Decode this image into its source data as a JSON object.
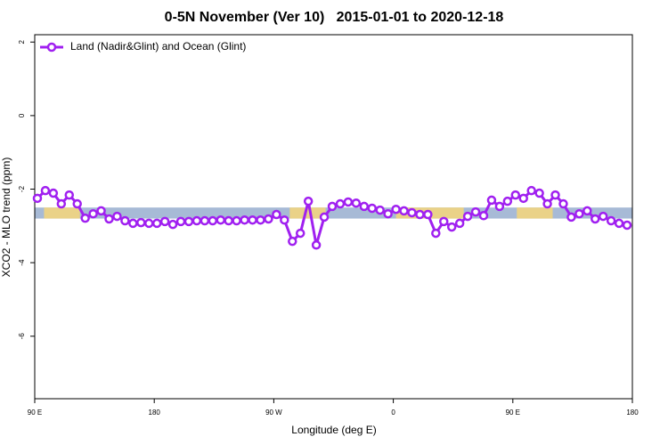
{
  "chart_data": {
    "type": "line",
    "title": "0-5N November (Ver 10)   2015-01-01 to 2020-12-18",
    "xlabel": "Longitude (deg E)",
    "ylabel": "XCO2 - MLO trend (ppm)",
    "xlim": [
      90,
      540
    ],
    "ylim": [
      -7.7,
      2.2
    ],
    "xticks": [
      {
        "value": 90,
        "label": "90 E"
      },
      180,
      {
        "value": 270,
        "label": "90 W"
      },
      {
        "value": 360,
        "label": "0"
      },
      {
        "value": 450,
        "label": "90 E"
      },
      {
        "value": 540,
        "label": "180"
      }
    ],
    "yticks": [
      -6,
      -4,
      -2,
      0,
      2
    ],
    "band": {
      "range": [
        -2.5,
        -2.8
      ],
      "color": "#a7bad6",
      "land_color": "#f6d67a",
      "land": [
        [
          97,
          124
        ],
        [
          282,
          309
        ],
        [
          362,
          413
        ],
        [
          453,
          480
        ]
      ]
    },
    "legend": "top-left",
    "x": [
      92,
      98,
      104,
      110,
      116,
      122,
      128,
      134,
      140,
      146,
      152,
      158,
      164,
      170,
      176,
      182,
      188,
      194,
      200,
      206,
      212,
      218,
      224,
      230,
      236,
      242,
      248,
      254,
      260,
      266,
      272,
      278,
      284,
      290,
      296,
      302,
      308,
      314,
      320,
      326,
      332,
      338,
      344,
      350,
      356,
      362,
      368,
      374,
      380,
      386,
      392,
      398,
      404,
      410,
      416,
      422,
      428,
      434,
      440,
      446,
      452,
      458,
      464,
      470,
      476,
      482,
      488,
      494,
      500,
      506,
      512,
      518,
      524,
      530,
      536
    ],
    "series": [
      {
        "name": "Land (Nadir&Glint) and Ocean (Glint)",
        "color": "#a020f0",
        "values": [
          -2.25,
          -2.04,
          -2.11,
          -2.4,
          -2.16,
          -2.4,
          -2.79,
          -2.67,
          -2.59,
          -2.81,
          -2.74,
          -2.86,
          -2.93,
          -2.91,
          -2.93,
          -2.93,
          -2.88,
          -2.96,
          -2.88,
          -2.88,
          -2.86,
          -2.86,
          -2.86,
          -2.84,
          -2.86,
          -2.86,
          -2.84,
          -2.84,
          -2.84,
          -2.81,
          -2.69,
          -2.84,
          -3.42,
          -3.2,
          -2.33,
          -3.52,
          -2.76,
          -2.47,
          -2.4,
          -2.35,
          -2.38,
          -2.47,
          -2.52,
          -2.57,
          -2.67,
          -2.55,
          -2.59,
          -2.64,
          -2.69,
          -2.69,
          -3.2,
          -2.88,
          -3.03,
          -2.93,
          -2.74,
          -2.62,
          -2.72,
          -2.3,
          -2.47,
          -2.33,
          -2.16,
          -2.25,
          -2.04,
          -2.11,
          -2.4,
          -2.16,
          -2.4,
          -2.76,
          -2.67,
          -2.59,
          -2.81,
          -2.74,
          -2.86,
          -2.93,
          -2.98
        ]
      }
    ]
  }
}
